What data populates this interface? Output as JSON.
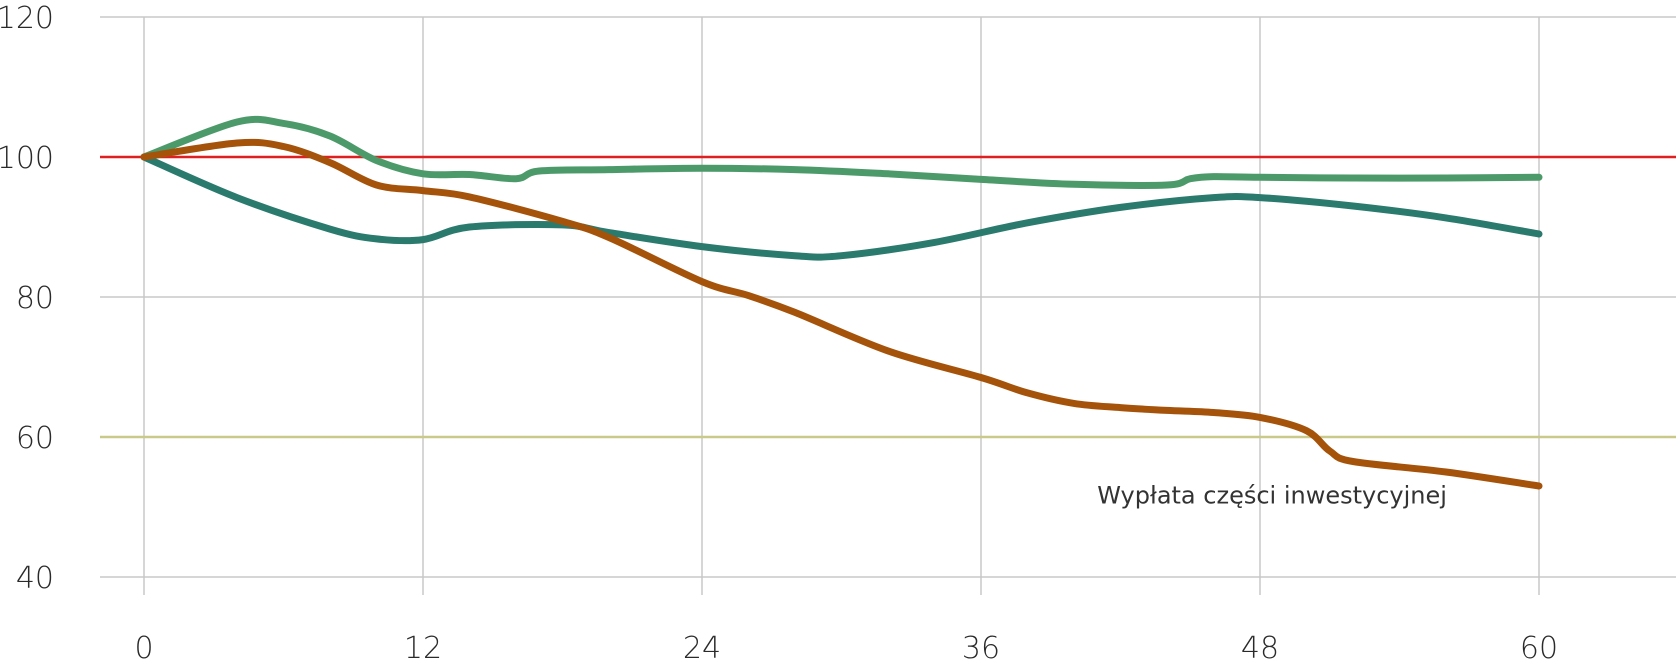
{
  "chart_data": {
    "type": "line",
    "title": "",
    "xlabel": "",
    "ylabel": "",
    "xlim": [
      -3,
      69
    ],
    "ylim": [
      39,
      121
    ],
    "x_ticks": [
      0,
      12,
      24,
      36,
      48,
      60
    ],
    "y_ticks": [
      40,
      60,
      80,
      100,
      120
    ],
    "x_tick_labels": [
      "0",
      "12",
      "24",
      "36",
      "48",
      "60"
    ],
    "y_tick_labels": [
      "40",
      "60",
      "80",
      "100",
      "120"
    ],
    "grid": true,
    "legend": "none",
    "reference_lines": [
      {
        "y": 100,
        "color": "#e02020"
      },
      {
        "y": 60,
        "color": "#c9c98a"
      }
    ],
    "annotations": [
      {
        "text": "Wypłata części inwestycyjnej",
        "x": 41,
        "y": 50.5
      }
    ],
    "series": [
      {
        "color": "#4c9a6a",
        "points": [
          [
            0,
            100
          ],
          [
            4,
            105
          ],
          [
            6,
            104.8
          ],
          [
            8,
            103
          ],
          [
            10,
            99.5
          ],
          [
            12,
            97.6
          ],
          [
            14,
            97.5
          ],
          [
            16,
            96.9
          ],
          [
            17,
            98
          ],
          [
            20,
            98.2
          ],
          [
            24,
            98.4
          ],
          [
            28,
            98.2
          ],
          [
            32,
            97.6
          ],
          [
            36,
            96.8
          ],
          [
            40,
            96.1
          ],
          [
            44,
            96
          ],
          [
            45,
            96.9
          ],
          [
            46,
            97.2
          ],
          [
            48,
            97.1
          ],
          [
            52,
            97
          ],
          [
            56,
            97
          ],
          [
            60,
            97.1
          ]
        ]
      },
      {
        "color": "#2a7a6e",
        "points": [
          [
            0,
            100
          ],
          [
            4,
            94.2
          ],
          [
            8,
            89.7
          ],
          [
            10,
            88.3
          ],
          [
            12,
            88.2
          ],
          [
            14,
            90
          ],
          [
            18,
            90.3
          ],
          [
            20,
            89.2
          ],
          [
            24,
            87.2
          ],
          [
            28,
            85.9
          ],
          [
            30,
            85.9
          ],
          [
            34,
            87.8
          ],
          [
            38,
            90.6
          ],
          [
            42,
            92.8
          ],
          [
            46,
            94.2
          ],
          [
            48,
            94.2
          ],
          [
            52,
            93
          ],
          [
            56,
            91.3
          ],
          [
            60,
            89
          ]
        ]
      },
      {
        "color": "#a5530a",
        "points": [
          [
            0,
            100
          ],
          [
            4,
            102
          ],
          [
            6,
            101.5
          ],
          [
            8,
            99.2
          ],
          [
            10,
            96
          ],
          [
            12,
            95.2
          ],
          [
            14,
            94.3
          ],
          [
            18,
            90.8
          ],
          [
            20,
            88.5
          ],
          [
            24,
            82.2
          ],
          [
            26,
            80.2
          ],
          [
            28,
            77.8
          ],
          [
            32,
            72.3
          ],
          [
            36,
            68.5
          ],
          [
            38,
            66.3
          ],
          [
            40,
            64.8
          ],
          [
            42,
            64.2
          ],
          [
            44,
            63.8
          ],
          [
            46,
            63.5
          ],
          [
            48,
            62.8
          ],
          [
            50,
            60.9
          ],
          [
            51,
            58
          ],
          [
            52,
            56.5
          ],
          [
            56,
            55
          ],
          [
            60,
            53
          ]
        ]
      }
    ]
  }
}
